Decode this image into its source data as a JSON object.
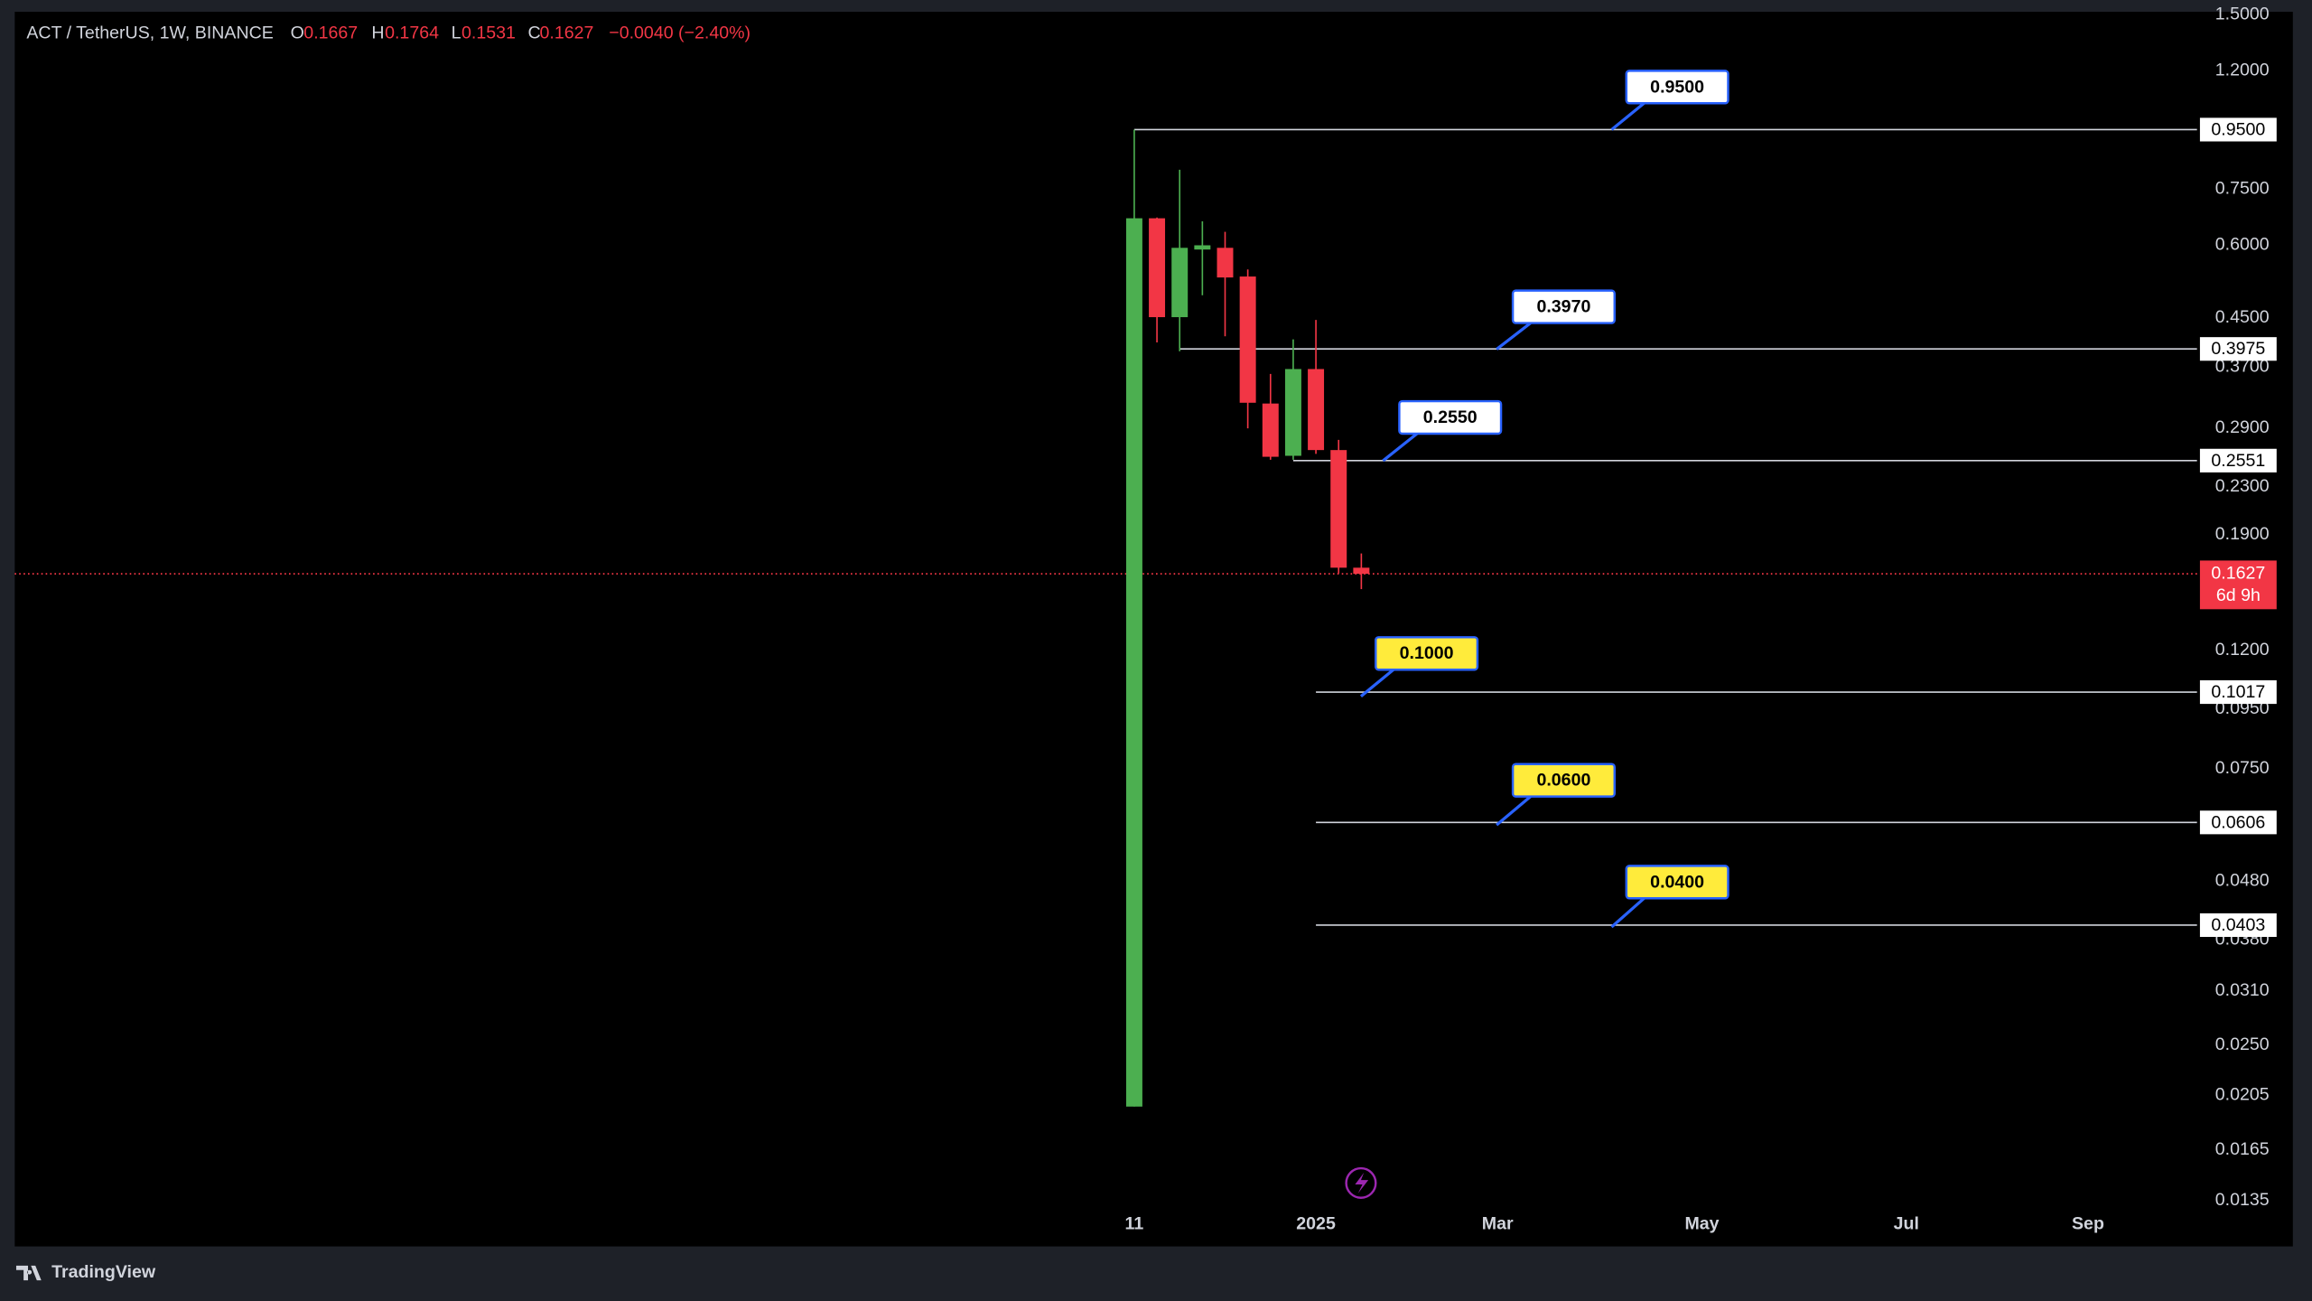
{
  "chart_data": {
    "type": "candlestick",
    "title": "ACT / TetherUS, 1W, BINANCE",
    "header_labels": [
      "O",
      "H",
      "L",
      "C"
    ],
    "change": "−0.0040 (−2.40%)",
    "open": [
      0.0196,
      0.668,
      0.451,
      0.59,
      0.594,
      0.53,
      0.32,
      0.26,
      0.367,
      0.266,
      0.1667
    ],
    "high": [
      0.95,
      0.67,
      0.81,
      0.66,
      0.633,
      0.545,
      0.36,
      0.413,
      0.446,
      0.277,
      0.1764
    ],
    "low": [
      0.0196,
      0.408,
      0.394,
      0.492,
      0.418,
      0.29,
      0.256,
      0.256,
      0.262,
      0.163,
      0.1531
    ],
    "close": [
      0.668,
      0.451,
      0.594,
      0.6,
      0.528,
      0.321,
      0.259,
      0.367,
      0.266,
      0.1667,
      0.1627
    ],
    "up_color": "#4caf50",
    "down_color": "#f23645",
    "log_scale": true,
    "ylim": [
      0.01302,
      1.517
    ],
    "yticks": [
      {
        "value": 1.5,
        "label": "1.5000"
      },
      {
        "value": 1.2,
        "label": "1.2000"
      },
      {
        "value": 0.75,
        "label": "0.7500"
      },
      {
        "value": 0.6,
        "label": "0.6000"
      },
      {
        "value": 0.45,
        "label": "0.4500"
      },
      {
        "value": 0.37,
        "label": "0.3700"
      },
      {
        "value": 0.29,
        "label": "0.2900"
      },
      {
        "value": 0.23,
        "label": "0.2300"
      },
      {
        "value": 0.19,
        "label": "0.1900"
      },
      {
        "value": 0.12,
        "label": "0.1200"
      },
      {
        "value": 0.095,
        "label": "0.0950"
      },
      {
        "value": 0.075,
        "label": "0.0750"
      },
      {
        "value": 0.048,
        "label": "0.0480"
      },
      {
        "value": 0.038,
        "label": "0.0380"
      },
      {
        "value": 0.031,
        "label": "0.0310"
      },
      {
        "value": 0.025,
        "label": "0.0250"
      },
      {
        "value": 0.0205,
        "label": "0.0205"
      },
      {
        "value": 0.0165,
        "label": "0.0165"
      },
      {
        "value": 0.0135,
        "label": "0.0135"
      }
    ],
    "xlim": [
      -49.3,
      46.8
    ],
    "xticks": [
      {
        "value": 0,
        "label": "11"
      },
      {
        "value": 8,
        "label": "2025"
      },
      {
        "value": 16,
        "label": "Mar"
      },
      {
        "value": 25,
        "label": "May"
      },
      {
        "value": 34,
        "label": "Jul"
      },
      {
        "value": 42,
        "label": "Sep"
      }
    ],
    "countdown": "6d 9h",
    "levels": [
      {
        "price": {
          "value": 0.95,
          "label": "0.9500"
        },
        "note": {
          "value": 0.95,
          "label": "0.9500"
        },
        "note_color": "#ffffff"
      },
      {
        "price": {
          "value": 0.3975,
          "label": "0.3975"
        },
        "note": {
          "value": 0.397,
          "label": "0.3970"
        },
        "note_color": "#ffffff"
      },
      {
        "price": {
          "value": 0.2551,
          "label": "0.2551"
        },
        "note": {
          "value": 0.255,
          "label": "0.2550"
        },
        "note_color": "#ffffff"
      },
      {
        "price": {
          "value": 0.1017,
          "label": "0.1017"
        },
        "note": {
          "value": 0.1,
          "label": "0.1000"
        },
        "note_color": "#ffeb3b"
      },
      {
        "price": {
          "value": 0.0606,
          "label": "0.0606"
        },
        "note": {
          "value": 0.06,
          "label": "0.0600"
        },
        "note_color": "#ffeb3b"
      },
      {
        "price": {
          "value": 0.0403,
          "label": "0.0403"
        },
        "note": {
          "value": 0.04,
          "label": "0.0400"
        },
        "note_color": "#ffeb3b"
      }
    ]
  },
  "footer": {
    "brand": "TradingView"
  }
}
